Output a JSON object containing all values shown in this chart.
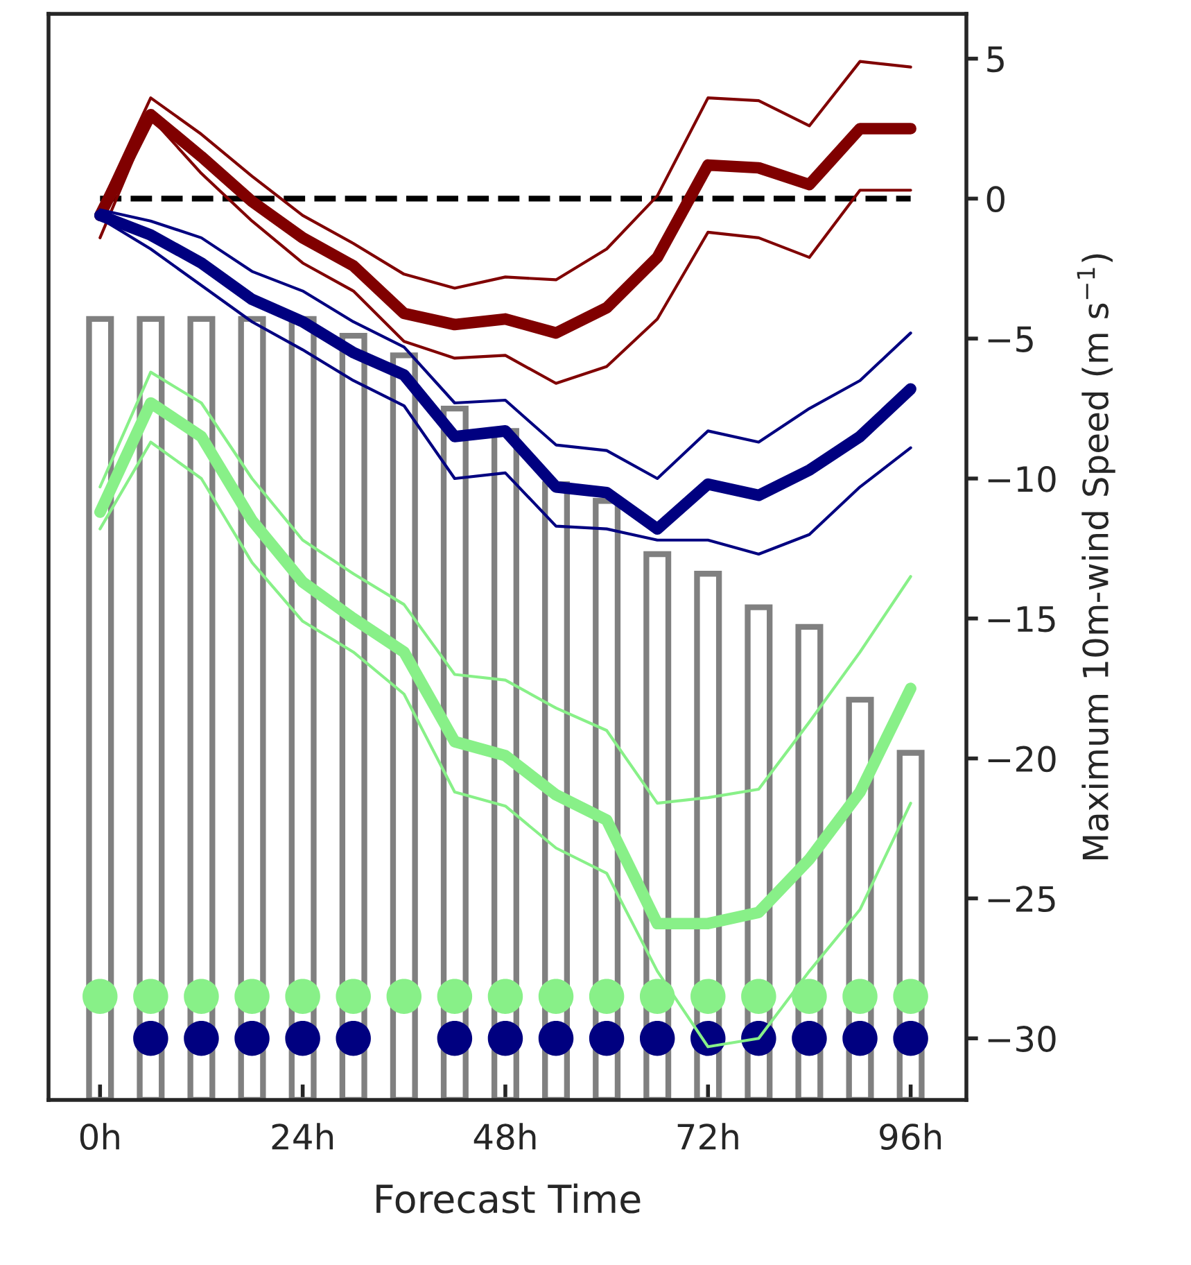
{
  "chart_data": {
    "type": "line",
    "xlabel": "Forecast Time",
    "ylabel": "Maximum 10m-wind Speed (m s$^{−1}$)",
    "xlim": [
      -6.1,
      102.6
    ],
    "ylim": [
      -32.2,
      6.6
    ],
    "xticks": [
      {
        "value": 0,
        "label": "0h"
      },
      {
        "value": 24,
        "label": "24h"
      },
      {
        "value": 48,
        "label": "48h"
      },
      {
        "value": 72,
        "label": "72h"
      },
      {
        "value": 96,
        "label": "96h"
      }
    ],
    "yticks": [
      -30,
      -25,
      -20,
      -15,
      -10,
      -5,
      0,
      5
    ],
    "grid": false,
    "legend": false,
    "marker": "none",
    "line_style": "solid",
    "x": [
      0,
      6,
      12,
      18,
      24,
      30,
      36,
      42,
      48,
      54,
      60,
      66,
      72,
      78,
      84,
      90,
      96
    ],
    "ref_lines": [
      {
        "axis": "y",
        "value": 0,
        "color": "#000000",
        "line_style": "dashed"
      }
    ],
    "series": [
      {
        "type": "bar",
        "color": "#808080",
        "base": [
          -32.2,
          -32.2,
          -32.2,
          -32.2,
          -32.2,
          -32.2,
          -32.2,
          -32.2,
          -32.2,
          -32.2,
          -32.2,
          -32.2,
          -32.2,
          -32.2,
          -32.2,
          -32.2,
          -32.2
        ],
        "values": [
          27.9,
          27.9,
          27.9,
          27.9,
          27.9,
          27.3,
          26.6,
          24.7,
          23.9,
          22.0,
          21.4,
          19.5,
          18.8,
          17.6,
          16.9,
          14.3,
          12.4
        ]
      },
      {
        "type": "scatter",
        "marker": "circle",
        "color": "#88f088",
        "values": [
          -28.5,
          -28.5,
          -28.5,
          -28.5,
          -28.5,
          -28.5,
          -28.5,
          -28.5,
          -28.5,
          -28.5,
          -28.5,
          -28.5,
          -28.5,
          -28.5,
          -28.5,
          -28.5,
          -28.5
        ]
      },
      {
        "type": "scatter",
        "marker": "circle",
        "color": "#000080",
        "values": [
          null,
          -30.0,
          -30.0,
          -30.0,
          -30.0,
          -30.0,
          null,
          -30.0,
          -30.0,
          -30.0,
          -30.0,
          -30.0,
          -30.0,
          -30.0,
          -30.0,
          -30.0,
          -30.0
        ]
      },
      {
        "color": "#800000",
        "values": [
          -0.3,
          3.6,
          2.3,
          0.8,
          -0.6,
          -1.6,
          -2.7,
          -3.2,
          -2.8,
          -2.9,
          -1.8,
          0.1,
          3.6,
          3.5,
          2.6,
          4.9,
          4.7
        ]
      },
      {
        "color": "#800000",
        "values": [
          -1.4,
          2.9,
          0.9,
          -0.8,
          -2.3,
          -3.3,
          -5.1,
          -5.7,
          -5.6,
          -6.6,
          -6.0,
          -4.3,
          -1.2,
          -1.4,
          -2.1,
          0.3,
          0.3
        ]
      },
      {
        "color": "#800000",
        "values": [
          -0.6,
          3.0,
          1.5,
          -0.1,
          -1.4,
          -2.4,
          -4.1,
          -4.5,
          -4.3,
          -4.8,
          -3.9,
          -2.1,
          1.2,
          1.1,
          0.5,
          2.5,
          2.5
        ]
      },
      {
        "color": "#000080",
        "values": [
          -0.4,
          -0.8,
          -1.4,
          -2.6,
          -3.3,
          -4.4,
          -5.3,
          -7.3,
          -7.2,
          -8.8,
          -9.0,
          -10.0,
          -8.3,
          -8.7,
          -7.5,
          -6.5,
          -4.8
        ]
      },
      {
        "color": "#000080",
        "values": [
          -0.7,
          -1.8,
          -3.1,
          -4.4,
          -5.4,
          -6.5,
          -7.4,
          -10.0,
          -9.8,
          -11.7,
          -11.8,
          -12.2,
          -12.2,
          -12.7,
          -12.0,
          -10.3,
          -8.9
        ]
      },
      {
        "color": "#000080",
        "values": [
          -0.6,
          -1.3,
          -2.3,
          -3.6,
          -4.4,
          -5.5,
          -6.3,
          -8.5,
          -8.3,
          -10.3,
          -10.5,
          -11.8,
          -10.2,
          -10.6,
          -9.7,
          -8.5,
          -6.8
        ]
      },
      {
        "color": "#88f088",
        "values": [
          -10.3,
          -6.2,
          -7.3,
          -10.0,
          -12.2,
          -13.4,
          -14.5,
          -17.0,
          -17.2,
          -18.2,
          -19.0,
          -21.6,
          -21.4,
          -21.1,
          -18.7,
          -16.2,
          -13.5
        ]
      },
      {
        "color": "#88f088",
        "values": [
          -11.8,
          -8.7,
          -10.0,
          -13.0,
          -15.1,
          -16.2,
          -17.7,
          -21.2,
          -21.7,
          -23.2,
          -24.1,
          -27.6,
          -30.3,
          -30.0,
          -27.6,
          -25.4,
          -21.6
        ]
      },
      {
        "color": "#88f088",
        "values": [
          -11.2,
          -7.3,
          -8.5,
          -11.5,
          -13.7,
          -15.0,
          -16.2,
          -19.4,
          -19.9,
          -21.3,
          -22.2,
          -25.9,
          -25.9,
          -25.5,
          -23.6,
          -21.2,
          -17.5
        ]
      }
    ]
  }
}
